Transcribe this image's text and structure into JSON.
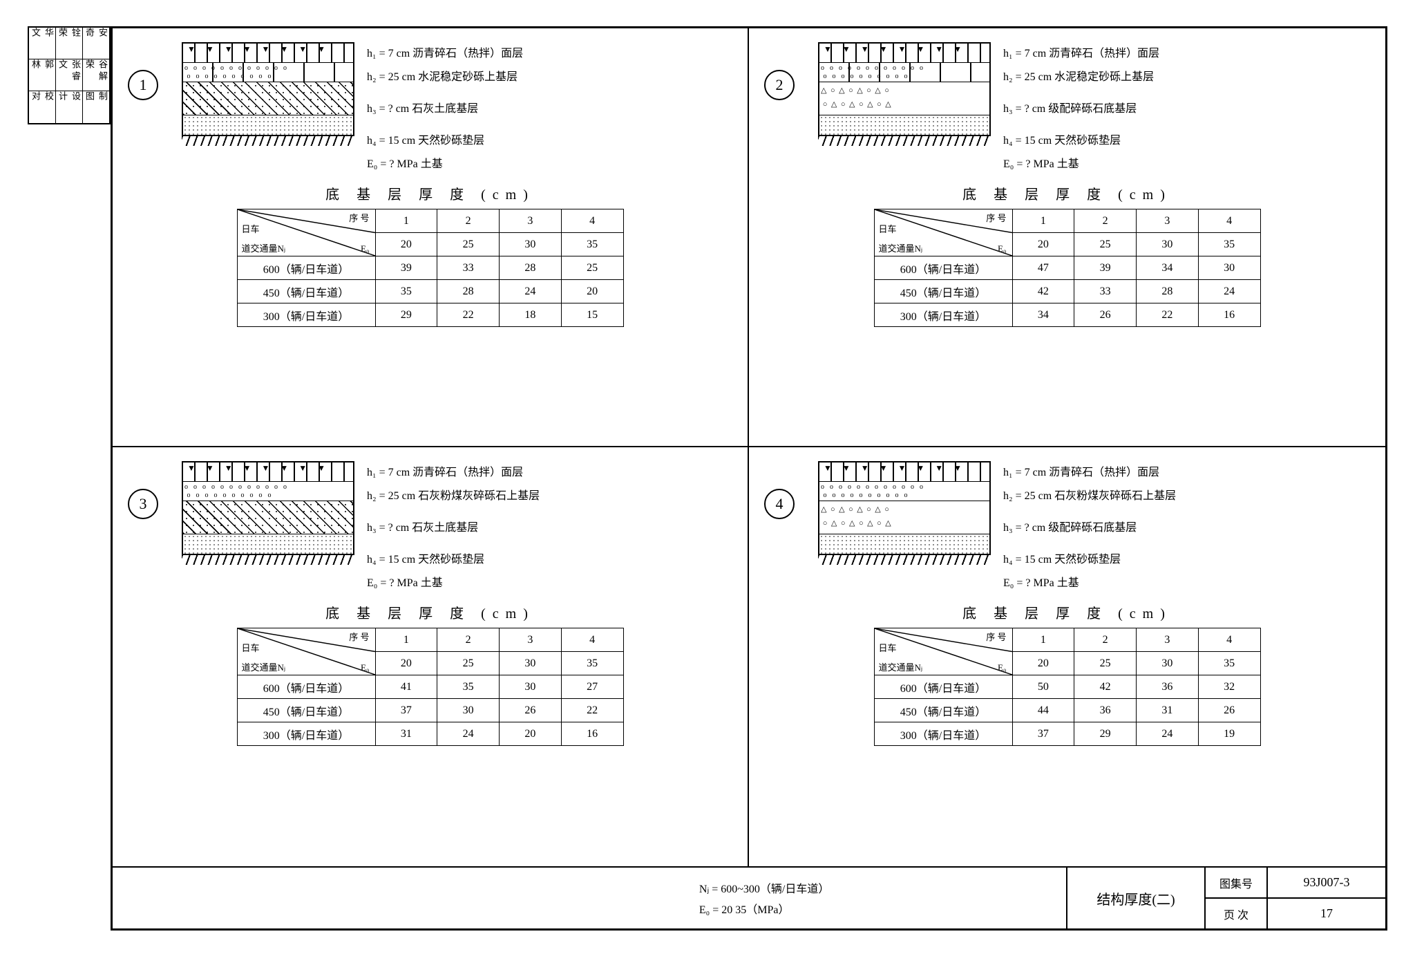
{
  "side_block": {
    "r1": [
      "校 对",
      "设 计",
      "制 图"
    ],
    "r2": [
      "郭 林",
      "张睿文",
      "谷解荣"
    ],
    "r3": [
      "华 文",
      "铨 荣",
      "安 奇"
    ]
  },
  "panels": [
    {
      "num": "1",
      "layer3_type": "hatch",
      "layer2_seg": true,
      "labels": {
        "h1": "h₁ =   7 cm 沥青碎石（热拌）面层",
        "h2": "h₂ = 25 cm 水泥稳定砂砾上基层",
        "h3": "h₃ =   ? cm 石灰土底基层",
        "h4": "h₄ = 15 cm 天然砂砾垫层",
        "e0": "E₀ =   ? MPa 土基"
      },
      "table": {
        "title": "底 基 层 厚 度   (cm)",
        "head_seq": "序 号",
        "head_e0": "E₀",
        "head_nj": "日车\n道交通量Nⱼ",
        "cols": [
          "1",
          "2",
          "3",
          "4"
        ],
        "e0row": [
          "20",
          "25",
          "30",
          "35"
        ],
        "rows": [
          {
            "label": "600（辆/日车道）",
            "vals": [
              "39",
              "33",
              "28",
              "25"
            ]
          },
          {
            "label": "450（辆/日车道）",
            "vals": [
              "35",
              "28",
              "24",
              "20"
            ]
          },
          {
            "label": "300（辆/日车道）",
            "vals": [
              "29",
              "22",
              "18",
              "15"
            ]
          }
        ]
      }
    },
    {
      "num": "2",
      "layer3_type": "tri-open",
      "layer2_seg": true,
      "labels": {
        "h1": "h₁ =   7 cm 沥青碎石（热拌）面层",
        "h2": "h₂ = 25 cm 水泥稳定砂砾上基层",
        "h3": "h₃ =   ? cm 级配碎砾石底基层",
        "h4": "h₄ = 15 cm 天然砂砾垫层",
        "e0": "E₀ =   ? MPa 土基"
      },
      "table": {
        "title": "底 基 层 厚 度   (cm)",
        "head_seq": "序 号",
        "head_e0": "E₀",
        "head_nj": "日车\n道交通量Nⱼ",
        "cols": [
          "1",
          "2",
          "3",
          "4"
        ],
        "e0row": [
          "20",
          "25",
          "30",
          "35"
        ],
        "rows": [
          {
            "label": "600（辆/日车道）",
            "vals": [
              "47",
              "39",
              "34",
              "30"
            ]
          },
          {
            "label": "450（辆/日车道）",
            "vals": [
              "42",
              "33",
              "28",
              "24"
            ]
          },
          {
            "label": "300（辆/日车道）",
            "vals": [
              "34",
              "26",
              "22",
              "16"
            ]
          }
        ]
      }
    },
    {
      "num": "3",
      "layer3_type": "hatch",
      "layer2_seg": false,
      "labels": {
        "h1": "h₁ =   7 cm 沥青碎石（热拌）面层",
        "h2": "h₂ = 25 cm 石灰粉煤灰碎砾石上基层",
        "h3": "h₃ =   ? cm 石灰土底基层",
        "h4": "h₄ = 15 cm 天然砂砾垫层",
        "e0": "E₀ =   ? MPa 土基"
      },
      "table": {
        "title": "底 基 层 厚 度   (cm)",
        "head_seq": "序 号",
        "head_e0": "E₀",
        "head_nj": "日车\n道交通量Nⱼ",
        "cols": [
          "1",
          "2",
          "3",
          "4"
        ],
        "e0row": [
          "20",
          "25",
          "30",
          "35"
        ],
        "rows": [
          {
            "label": "600（辆/日车道）",
            "vals": [
              "41",
              "35",
              "30",
              "27"
            ]
          },
          {
            "label": "450（辆/日车道）",
            "vals": [
              "37",
              "30",
              "26",
              "22"
            ]
          },
          {
            "label": "300（辆/日车道）",
            "vals": [
              "31",
              "24",
              "20",
              "16"
            ]
          }
        ]
      }
    },
    {
      "num": "4",
      "layer3_type": "tri-open",
      "layer2_seg": false,
      "labels": {
        "h1": "h₁ =   7 cm 沥青碎石（热拌）面层",
        "h2": "h₂ = 25 cm 石灰粉煤灰碎砾石上基层",
        "h3": "h₃ =   ? cm 级配碎砾石底基层",
        "h4": "h₄ = 15 cm 天然砂砾垫层",
        "e0": "E₀ =   ? MPa 土基"
      },
      "table": {
        "title": "底 基 层 厚 度   (cm)",
        "head_seq": "序 号",
        "head_e0": "E₀",
        "head_nj": "日车\n道交通量Nⱼ",
        "cols": [
          "1",
          "2",
          "3",
          "4"
        ],
        "e0row": [
          "20",
          "25",
          "30",
          "35"
        ],
        "rows": [
          {
            "label": "600（辆/日车道）",
            "vals": [
              "50",
              "42",
              "36",
              "32"
            ]
          },
          {
            "label": "450（辆/日车道）",
            "vals": [
              "44",
              "36",
              "31",
              "26"
            ]
          },
          {
            "label": "300（辆/日车道）",
            "vals": [
              "37",
              "29",
              "24",
              "19"
            ]
          }
        ]
      }
    }
  ],
  "footer": {
    "line1": "Nⱼ = 600~300（辆/日车道）",
    "line2": "E₀ =  20    35（MPa）",
    "title": "结构厚度(二)",
    "tuji_label": "图集号",
    "tuji_val": "93J007-3",
    "page_label": "页  次",
    "page_val": "17"
  }
}
